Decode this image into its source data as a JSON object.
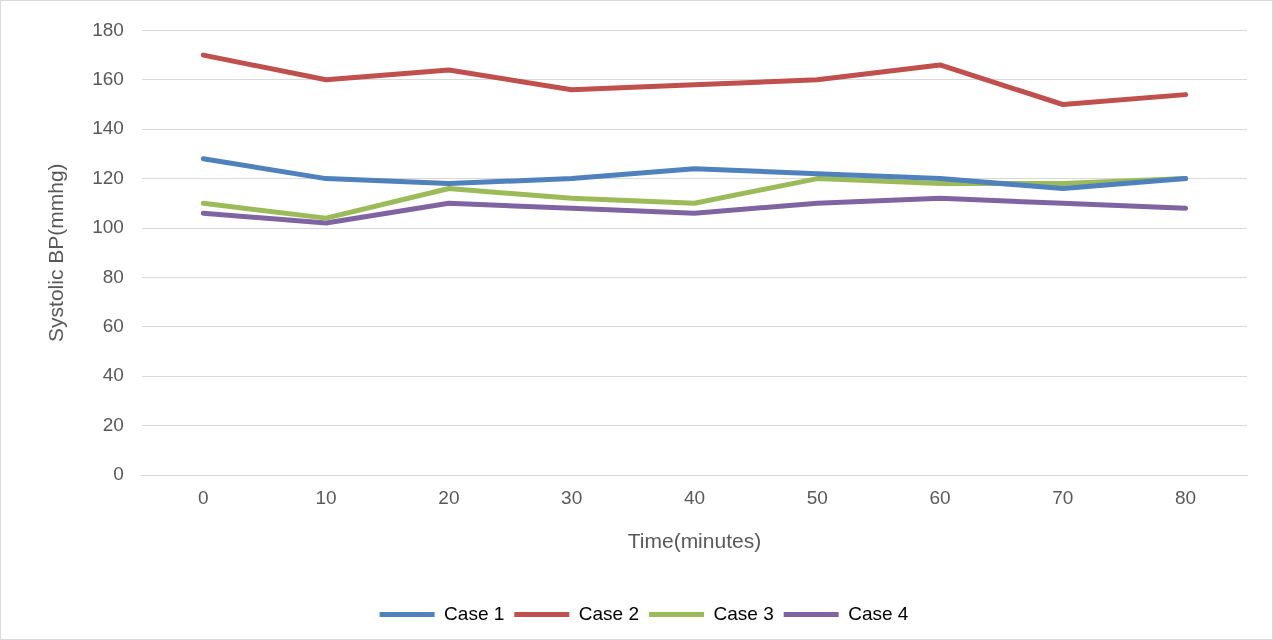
{
  "chart_data": {
    "type": "line",
    "xlabel": "Time(minutes)",
    "ylabel": "Systolic BP(mmhg)",
    "categories": [
      "0",
      "10",
      "20",
      "30",
      "40",
      "50",
      "60",
      "70",
      "80"
    ],
    "series": [
      {
        "name": "Case 1",
        "color": "#4f81bd",
        "values": [
          128,
          120,
          118,
          120,
          124,
          122,
          120,
          116,
          120
        ]
      },
      {
        "name": "Case 2",
        "color": "#c0504d",
        "values": [
          170,
          160,
          164,
          156,
          158,
          160,
          166,
          150,
          154
        ]
      },
      {
        "name": "Case 3",
        "color": "#9bbb59",
        "values": [
          110,
          104,
          116,
          112,
          110,
          120,
          118,
          118,
          120
        ]
      },
      {
        "name": "Case 4",
        "color": "#8064a2",
        "values": [
          106,
          102,
          110,
          108,
          106,
          110,
          112,
          110,
          108
        ]
      }
    ],
    "ylim": [
      0,
      180
    ],
    "yticks": [
      0,
      20,
      40,
      60,
      80,
      100,
      120,
      140,
      160,
      180
    ],
    "grid": "y",
    "legend": "bottom",
    "marker": "none",
    "line_style": "solid"
  }
}
